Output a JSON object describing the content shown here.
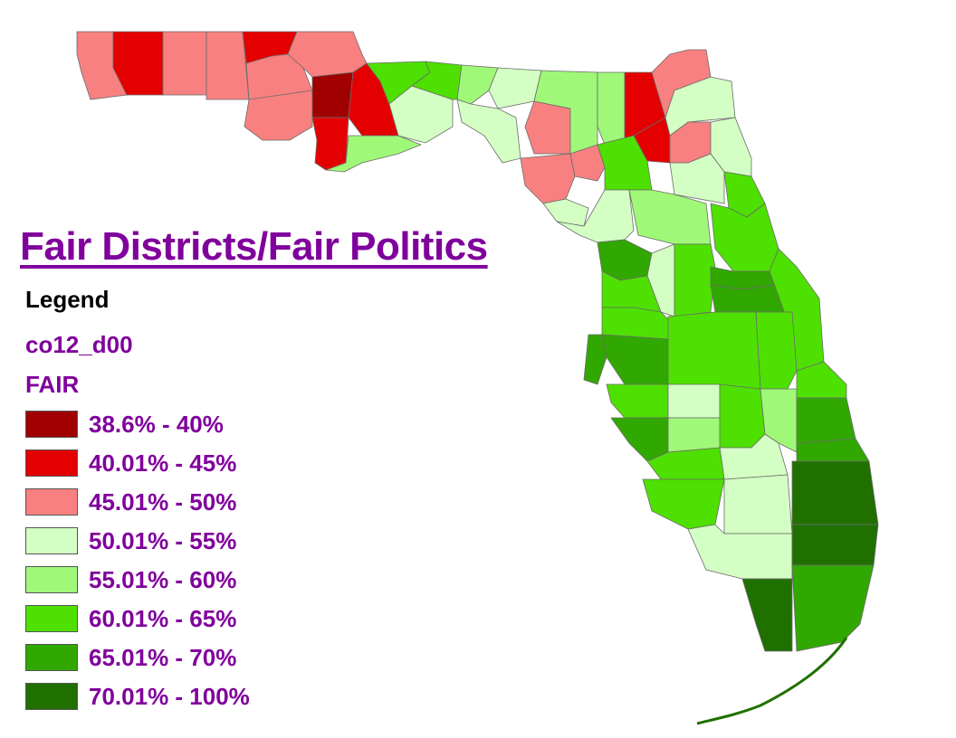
{
  "title": "Fair Districts/Fair Politics",
  "legend": {
    "title": "Legend",
    "layer": "co12_d00",
    "field": "FAIR",
    "classes": [
      {
        "label": "38.6% - 40%",
        "color": "#a00000"
      },
      {
        "label": "40.01% - 45%",
        "color": "#e40000"
      },
      {
        "label": "45.01% - 50%",
        "color": "#f88080"
      },
      {
        "label": "50.01% - 55%",
        "color": "#d4ffc4"
      },
      {
        "label": "55.01% - 60%",
        "color": "#a0f878"
      },
      {
        "label": "60.01% - 65%",
        "color": "#4ee000"
      },
      {
        "label": "65.01% - 70%",
        "color": "#30a800"
      },
      {
        "label": "70.01% - 100%",
        "color": "#207000"
      }
    ]
  }
}
